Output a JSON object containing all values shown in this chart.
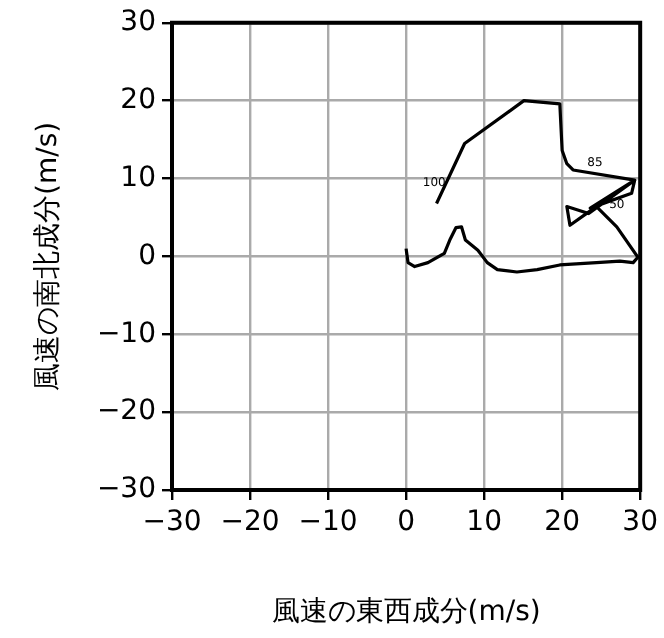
{
  "chart_data": {
    "type": "line",
    "xlabel": "風速の東西成分(m/s)",
    "ylabel": "風速の南北成分(m/s)",
    "xlim": [
      -30,
      30
    ],
    "xticks": [
      -30,
      -20,
      -10,
      0,
      10,
      20,
      30
    ],
    "ylim": [
      -30,
      30
    ],
    "yticks": [
      -30,
      -20,
      -10,
      0,
      10,
      20,
      30
    ],
    "grid": true,
    "marker": "none",
    "line_style": "solid",
    "series": [
      {
        "color": "#000000",
        "x": [
          0,
          0.25,
          1.1,
          2.8,
          4.9,
          5.6,
          6.4,
          7.1,
          7.6,
          9.2,
          10.4,
          11.7,
          14.2,
          16.8,
          19.7,
          24.4,
          27.4,
          29.1,
          29.7,
          27,
          24.4,
          23.1,
          21,
          20.6,
          21.9,
          23.4,
          29.3,
          28.9,
          23.6,
          29.3,
          21.4,
          20.6,
          20,
          19.7,
          15.1,
          7.5,
          3.9
        ],
        "values": [
          1,
          -0.8,
          -1.3,
          -0.8,
          0.4,
          2.1,
          3.7,
          3.8,
          2.1,
          0.8,
          -0.8,
          -1.7,
          -2,
          -1.7,
          -1.1,
          -0.8,
          -0.6,
          -0.8,
          -0.1,
          3.8,
          6.4,
          5.5,
          4,
          6.4,
          6,
          5.5,
          9.8,
          8.1,
          6.2,
          9.8,
          11.1,
          11.9,
          13.6,
          19.6,
          20,
          14.5,
          6.8
        ]
      }
    ],
    "annotations": [
      {
        "text": "100",
        "x": 3.6,
        "y": 9.4
      },
      {
        "text": "85",
        "x": 24.2,
        "y": 12
      },
      {
        "text": "50",
        "x": 27,
        "y": 6.6
      }
    ]
  }
}
